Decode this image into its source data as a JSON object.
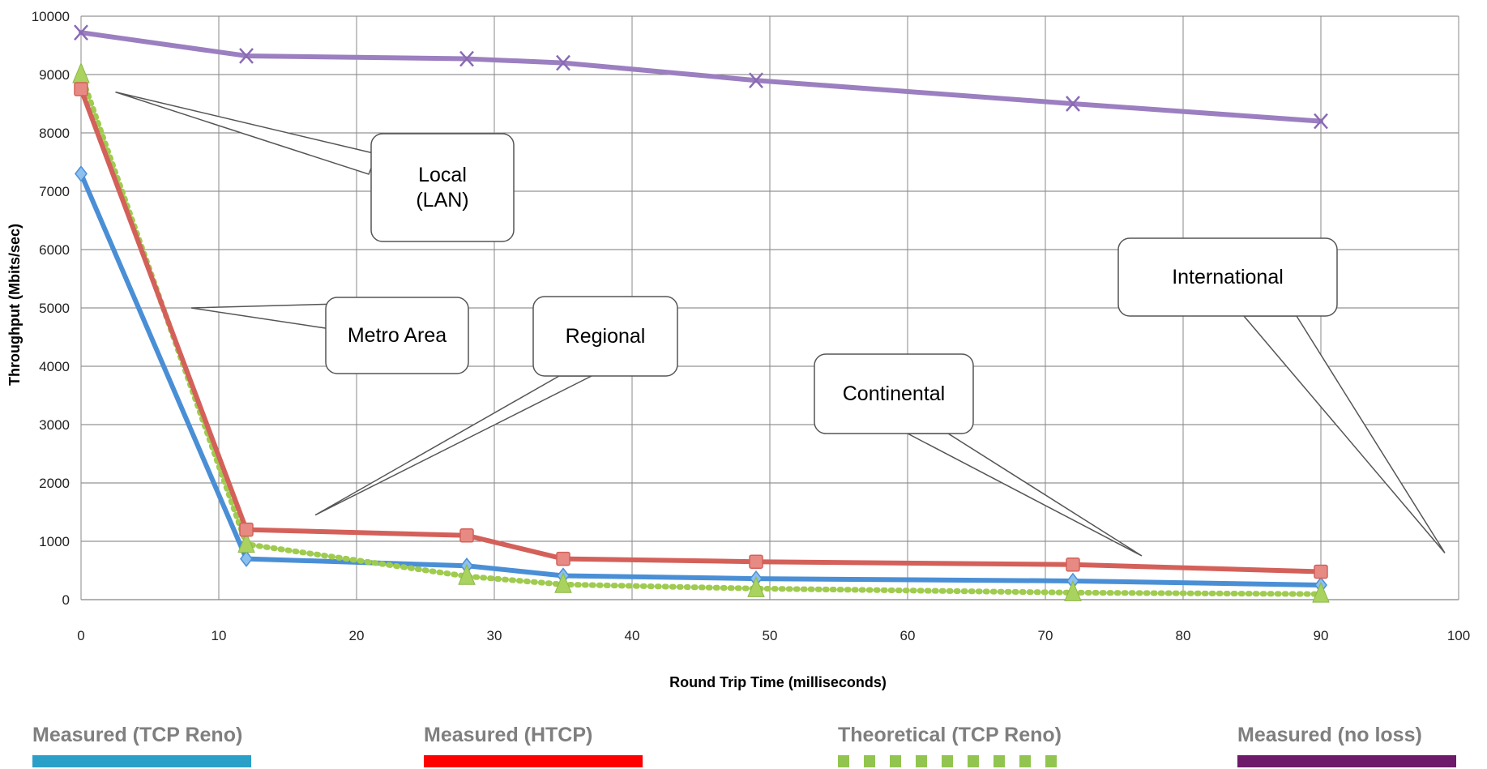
{
  "chart_data": {
    "type": "line",
    "title": "",
    "xlabel": "Round Trip Time (milliseconds)",
    "ylabel": "Throughput (Mbits/sec)",
    "xlim": [
      0,
      100
    ],
    "ylim": [
      0,
      10000
    ],
    "x_ticks": [
      "0",
      "10",
      "20",
      "30",
      "40",
      "50",
      "60",
      "70",
      "80",
      "90",
      "100"
    ],
    "y_ticks": [
      "0",
      "1000",
      "2000",
      "3000",
      "4000",
      "5000",
      "6000",
      "7000",
      "8000",
      "9000",
      "10000"
    ],
    "grid": true,
    "legend_position": "bottom",
    "series": [
      {
        "name": "Measured (TCP Reno)",
        "color": "#4a8fd6",
        "legend_color": "#2aa0c8",
        "style": "solid",
        "marker": "diamond",
        "x": [
          0,
          12,
          28,
          35,
          49,
          72,
          90
        ],
        "y": [
          7300,
          700,
          580,
          410,
          360,
          320,
          250
        ]
      },
      {
        "name": "Measured (HTCP)",
        "color": "#d4605a",
        "legend_color": "#ff0000",
        "style": "solid",
        "marker": "square",
        "x": [
          0,
          12,
          28,
          35,
          49,
          72,
          90
        ],
        "y": [
          8750,
          1200,
          1100,
          700,
          650,
          600,
          480
        ]
      },
      {
        "name": "Theoretical (TCP Reno)",
        "color": "#9fcb4f",
        "legend_color": "#92c550",
        "style": "dotted",
        "marker": "triangle",
        "x": [
          0,
          12,
          28,
          35,
          49,
          72,
          90
        ],
        "y": [
          9000,
          950,
          400,
          260,
          190,
          120,
          95
        ]
      },
      {
        "name": "Measured (no loss)",
        "color": "#9b7fc0",
        "legend_color": "#6d1a6a",
        "style": "solid",
        "marker": "x",
        "x": [
          0,
          12,
          28,
          35,
          49,
          72,
          90
        ],
        "y": [
          9720,
          9320,
          9270,
          9200,
          8900,
          8500,
          8200
        ]
      }
    ],
    "annotations": [
      {
        "lines": [
          "Local",
          "(LAN)"
        ],
        "points_to": [
          [
            2.5,
            8700
          ]
        ]
      },
      {
        "lines": [
          "Metro Area"
        ],
        "points_to": [
          [
            8,
            5000
          ]
        ]
      },
      {
        "lines": [
          "Regional"
        ],
        "points_to": [
          [
            17,
            1450
          ]
        ]
      },
      {
        "lines": [
          "Continental"
        ],
        "points_to": [
          [
            77,
            750
          ]
        ]
      },
      {
        "lines": [
          "International"
        ],
        "points_to": [
          [
            99,
            800
          ]
        ]
      }
    ]
  }
}
